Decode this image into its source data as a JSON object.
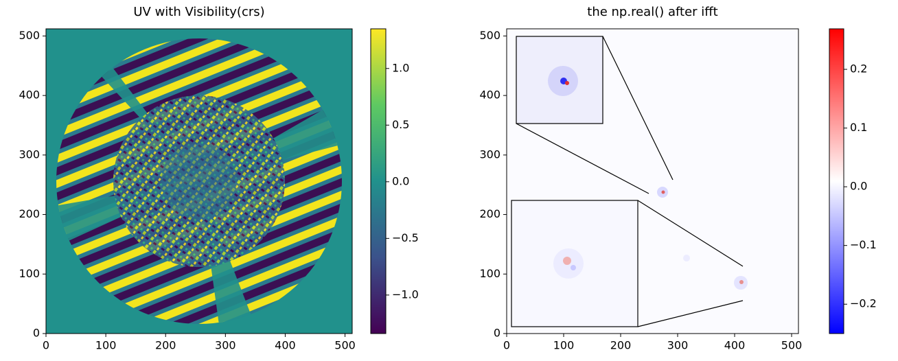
{
  "chart_data": [
    {
      "type": "image",
      "title": "UV with Visibility(crs)",
      "colormap": "viridis",
      "xlim": [
        0,
        512
      ],
      "ylim": [
        0,
        512
      ],
      "xticks": [
        0,
        100,
        200,
        300,
        400,
        500
      ],
      "yticks": [
        0,
        100,
        200,
        300,
        400,
        500
      ],
      "clim": [
        -1.34,
        1.35
      ],
      "colorbar_ticks": [
        {
          "value": -1.0,
          "label": "−1.0"
        },
        {
          "value": -0.5,
          "label": "−0.5"
        },
        {
          "value": 0,
          "label": "0.0"
        },
        0.5,
        {
          "value": 1,
          "label": "1.0"
        }
      ]
    },
    {
      "type": "image",
      "title": "the np.real() after ifft",
      "colormap": "bwr",
      "xlim": [
        0,
        512
      ],
      "ylim": [
        0,
        512
      ],
      "xticks": [
        0,
        100,
        200,
        300,
        400,
        500
      ],
      "yticks": [
        0,
        100,
        200,
        300,
        400,
        500
      ],
      "clim": [
        -0.25,
        0.269
      ],
      "colorbar_ticks": [
        {
          "value": -0.2,
          "label": "−0.2"
        },
        {
          "value": -0.1,
          "label": "−0.1"
        },
        {
          "value": 0,
          "label": "0.0"
        },
        0.1,
        0.2
      ]
    }
  ]
}
